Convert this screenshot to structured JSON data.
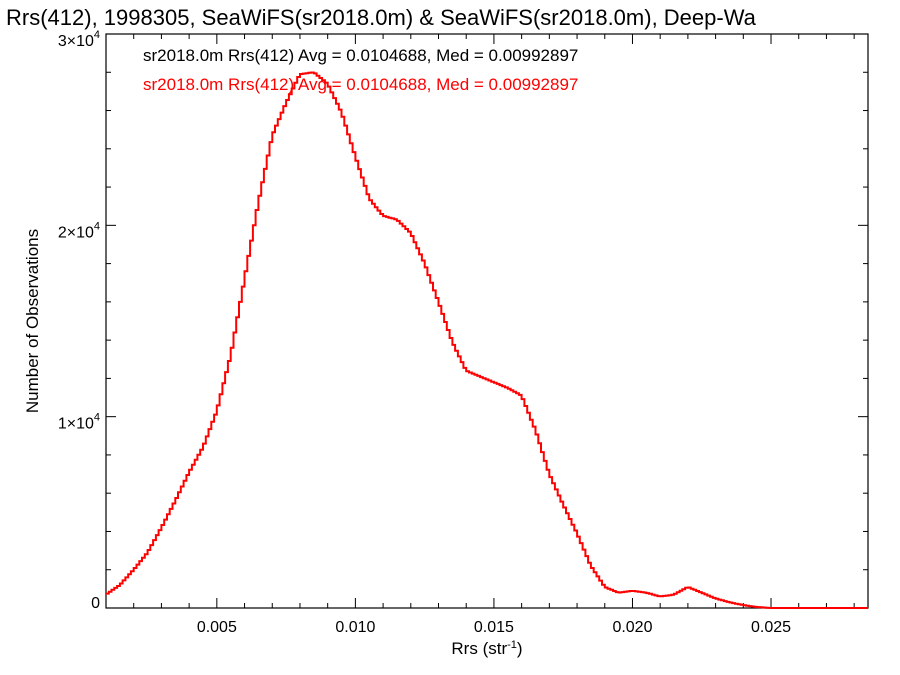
{
  "chart_data": {
    "type": "line",
    "title": "Rrs(412), 1998305, SeaWiFS(sr2018.0m) & SeaWiFS(sr2018.0m), Deep-Wa",
    "xlabel": "Rrs (str",
    "xlabel_sup": "-1",
    "xlabel_suffix": ")",
    "ylabel": "Number of Observations",
    "xlim": [
      0.001,
      0.0285
    ],
    "ylim": [
      0,
      30000
    ],
    "x_ticks": [
      {
        "value": 0.005,
        "label": "0.005"
      },
      {
        "value": 0.01,
        "label": "0.010"
      },
      {
        "value": 0.015,
        "label": "0.015"
      },
      {
        "value": 0.02,
        "label": "0.020"
      },
      {
        "value": 0.025,
        "label": "0.025"
      }
    ],
    "y_ticks": [
      {
        "value": 0,
        "mant": "0",
        "exp": ""
      },
      {
        "value": 10000,
        "mant": "1×10",
        "exp": "4"
      },
      {
        "value": 20000,
        "mant": "2×10",
        "exp": "4"
      },
      {
        "value": 30000,
        "mant": "3×10",
        "exp": "4"
      }
    ],
    "grid": false,
    "legend": [
      {
        "text": "sr2018.0m Rrs(412) Avg = 0.0104688, Med = 0.00992897",
        "color": "#000000"
      },
      {
        "text": "sr2018.0m Rrs(412) Avg = 0.0104688, Med = 0.00992897",
        "color": "#ff0000"
      }
    ],
    "series": [
      {
        "color": "#ff0000",
        "x": [
          0.001,
          0.0015,
          0.002,
          0.0025,
          0.003,
          0.0035,
          0.004,
          0.0045,
          0.005,
          0.0055,
          0.006,
          0.0065,
          0.007,
          0.0075,
          0.008,
          0.0085,
          0.009,
          0.0095,
          0.01,
          0.0105,
          0.011,
          0.0115,
          0.012,
          0.0125,
          0.013,
          0.0135,
          0.014,
          0.0145,
          0.015,
          0.0155,
          0.016,
          0.0165,
          0.017,
          0.0175,
          0.018,
          0.0185,
          0.019,
          0.0195,
          0.02,
          0.0205,
          0.021,
          0.0215,
          0.022,
          0.0225,
          0.023,
          0.0235,
          0.024,
          0.0245,
          0.025,
          0.026,
          0.027,
          0.0285
        ],
        "y": [
          700,
          1200,
          2000,
          2900,
          4200,
          5600,
          7100,
          8400,
          10300,
          13200,
          17200,
          21200,
          24700,
          26400,
          27900,
          28000,
          27400,
          25900,
          23600,
          21400,
          20500,
          20300,
          19600,
          18000,
          16000,
          13900,
          12400,
          12100,
          11800,
          11500,
          11100,
          9300,
          7000,
          5400,
          3900,
          2200,
          1100,
          800,
          900,
          800,
          600,
          700,
          1100,
          800,
          500,
          300,
          150,
          50,
          0,
          0,
          0,
          0
        ]
      }
    ]
  }
}
